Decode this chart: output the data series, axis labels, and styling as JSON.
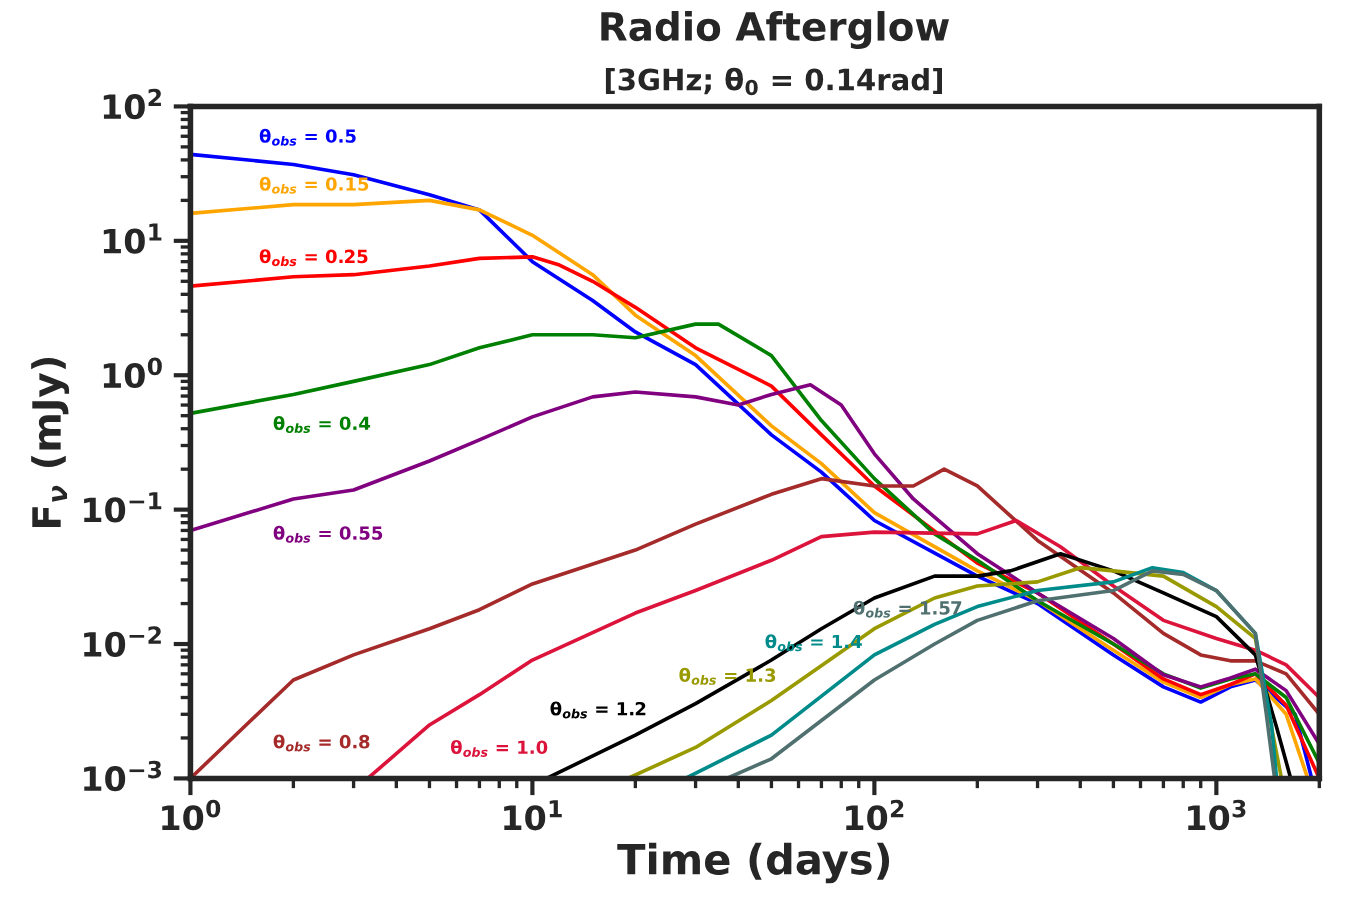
{
  "chart_data": {
    "type": "line",
    "title": "Radio Afterglow",
    "subtitle": "[3GHz; θ$_{0}$ = 0.14rad]",
    "xlabel": "Time (days)",
    "ylabel": "F$_{ν}$ (mJy)",
    "log": "xy",
    "grid": false,
    "legend": false,
    "marker": "none",
    "line_style": "solid",
    "xlim": [
      1,
      2000
    ],
    "ylim": [
      0.001,
      100
    ],
    "xticks": [
      {
        "value": 1,
        "label": "10$^{0}$"
      },
      {
        "value": 10,
        "label": "10$^{1}$"
      },
      {
        "value": 100,
        "label": "10$^{2}$"
      },
      {
        "value": 1000,
        "label": "10$^{3}$"
      }
    ],
    "yticks": [
      {
        "value": 0.001,
        "label": "10$^{−3}$"
      },
      {
        "value": 0.01,
        "label": "10$^{−2}$"
      },
      {
        "value": 0.1,
        "label": "10$^{−1}$"
      },
      {
        "value": 1,
        "label": "10$^{0}$"
      },
      {
        "value": 10,
        "label": "10$^{1}$"
      },
      {
        "value": 100,
        "label": "10$^{2}$"
      }
    ],
    "series": [
      {
        "name": "θ$_{obs}$ = 0.5",
        "color": "#0000ff",
        "x": [
          1,
          2,
          3,
          5,
          7,
          10,
          15,
          20,
          30,
          50,
          70,
          100,
          200,
          300,
          500,
          700,
          900,
          1100,
          1300,
          1700,
          1900
        ],
        "values": [
          44,
          37,
          31,
          22,
          17,
          7,
          3.6,
          2.1,
          1.2,
          0.36,
          0.19,
          0.083,
          0.032,
          0.02,
          0.0083,
          0.0048,
          0.0037,
          0.0048,
          0.0054,
          0.003,
          0.001
        ]
      },
      {
        "name": "θ$_{obs}$ = 0.15",
        "color": "#ffa500",
        "x": [
          1,
          2,
          3,
          5,
          7,
          10,
          15,
          20,
          30,
          50,
          70,
          100,
          200,
          300,
          500,
          700,
          900,
          1100,
          1300,
          1600,
          1850
        ],
        "values": [
          16,
          18.6,
          18.6,
          20,
          17,
          11,
          5.6,
          2.8,
          1.4,
          0.42,
          0.22,
          0.095,
          0.035,
          0.021,
          0.009,
          0.0052,
          0.004,
          0.005,
          0.0055,
          0.003,
          0.001
        ]
      },
      {
        "name": "θ$_{obs}$ = 0.25",
        "color": "#ff0000",
        "x": [
          1,
          2,
          3,
          5,
          7,
          10,
          12,
          15,
          20,
          30,
          50,
          70,
          100,
          200,
          300,
          500,
          700,
          900,
          1100,
          1300,
          1600,
          2000
        ],
        "values": [
          4.6,
          5.4,
          5.6,
          6.5,
          7.4,
          7.6,
          6.6,
          5,
          3.2,
          1.6,
          0.83,
          0.36,
          0.15,
          0.04,
          0.024,
          0.01,
          0.0055,
          0.0042,
          0.005,
          0.006,
          0.0035,
          0.001
        ]
      },
      {
        "name": "θ$_{obs}$ = 0.4",
        "color": "#008000",
        "x": [
          1,
          2,
          3,
          5,
          7,
          10,
          15,
          20,
          30,
          35,
          50,
          70,
          100,
          150,
          200,
          300,
          500,
          700,
          900,
          1100,
          1300,
          1600,
          2000
        ],
        "values": [
          0.52,
          0.72,
          0.9,
          1.2,
          1.6,
          2,
          2,
          1.9,
          2.4,
          2.4,
          1.4,
          0.46,
          0.17,
          0.066,
          0.042,
          0.021,
          0.01,
          0.006,
          0.0047,
          0.0055,
          0.006,
          0.004,
          0.0013
        ]
      },
      {
        "name": "θ$_{obs}$ = 0.55",
        "color": "#800080",
        "x": [
          1,
          2,
          3,
          5,
          7,
          10,
          15,
          20,
          30,
          40,
          50,
          65,
          80,
          100,
          130,
          200,
          300,
          500,
          700,
          900,
          1100,
          1300,
          1600,
          2000
        ],
        "values": [
          0.07,
          0.12,
          0.14,
          0.23,
          0.33,
          0.49,
          0.69,
          0.75,
          0.69,
          0.6,
          0.72,
          0.85,
          0.6,
          0.26,
          0.12,
          0.047,
          0.024,
          0.011,
          0.0059,
          0.0048,
          0.0056,
          0.0065,
          0.0045,
          0.0018
        ]
      },
      {
        "name": "θ$_{obs}$ = 0.8",
        "color": "#a52a2a",
        "x": [
          1,
          1.3,
          2,
          3,
          5,
          7,
          10,
          20,
          30,
          50,
          70,
          100,
          130,
          160,
          200,
          300,
          500,
          700,
          900,
          1100,
          1300,
          1600,
          2000
        ],
        "values": [
          0.001,
          0.0019,
          0.0054,
          0.0083,
          0.013,
          0.018,
          0.028,
          0.05,
          0.078,
          0.13,
          0.17,
          0.15,
          0.15,
          0.2,
          0.15,
          0.059,
          0.024,
          0.012,
          0.0083,
          0.0075,
          0.0075,
          0.006,
          0.003
        ]
      },
      {
        "name": "θ$_{obs}$ = 1.0",
        "color": "#dc143c",
        "x": [
          3.3,
          5,
          7,
          10,
          20,
          30,
          50,
          70,
          100,
          200,
          260,
          350,
          500,
          700,
          1000,
          1300,
          1600,
          2000
        ],
        "values": [
          0.001,
          0.0025,
          0.0042,
          0.0076,
          0.017,
          0.025,
          0.042,
          0.063,
          0.068,
          0.066,
          0.083,
          0.053,
          0.027,
          0.015,
          0.011,
          0.009,
          0.007,
          0.004
        ]
      },
      {
        "name": "θ$_{obs}$ = 1.2",
        "color": "#000000",
        "x": [
          11,
          20,
          30,
          50,
          70,
          100,
          150,
          200,
          250,
          350,
          500,
          700,
          1000,
          1300,
          1500,
          1650
        ],
        "values": [
          0.001,
          0.0021,
          0.0036,
          0.0076,
          0.013,
          0.022,
          0.032,
          0.032,
          0.035,
          0.047,
          0.035,
          0.024,
          0.016,
          0.0083,
          0.0024,
          0.001
        ]
      },
      {
        "name": "θ$_{obs}$ = 1.3",
        "color": "#999900",
        "x": [
          19,
          30,
          50,
          100,
          150,
          200,
          300,
          400,
          500,
          700,
          1000,
          1300,
          1450,
          1550
        ],
        "values": [
          0.001,
          0.0017,
          0.0038,
          0.013,
          0.022,
          0.027,
          0.029,
          0.037,
          0.035,
          0.032,
          0.019,
          0.011,
          0.0024,
          0.001
        ]
      },
      {
        "name": "θ$_{obs}$ = 1.4",
        "color": "#008b8b",
        "x": [
          28,
          50,
          100,
          150,
          200,
          300,
          500,
          650,
          800,
          1000,
          1300,
          1450,
          1500
        ],
        "values": [
          0.001,
          0.0021,
          0.0083,
          0.014,
          0.019,
          0.025,
          0.029,
          0.037,
          0.034,
          0.025,
          0.012,
          0.0025,
          0.001
        ]
      },
      {
        "name": "θ$_{obs}$ = 1.57",
        "color": "#507070",
        "x": [
          37,
          50,
          100,
          150,
          200,
          300,
          500,
          650,
          800,
          1000,
          1300,
          1400,
          1480
        ],
        "values": [
          0.001,
          0.0014,
          0.0054,
          0.01,
          0.015,
          0.021,
          0.025,
          0.035,
          0.033,
          0.025,
          0.012,
          0.003,
          0.001
        ]
      }
    ]
  }
}
